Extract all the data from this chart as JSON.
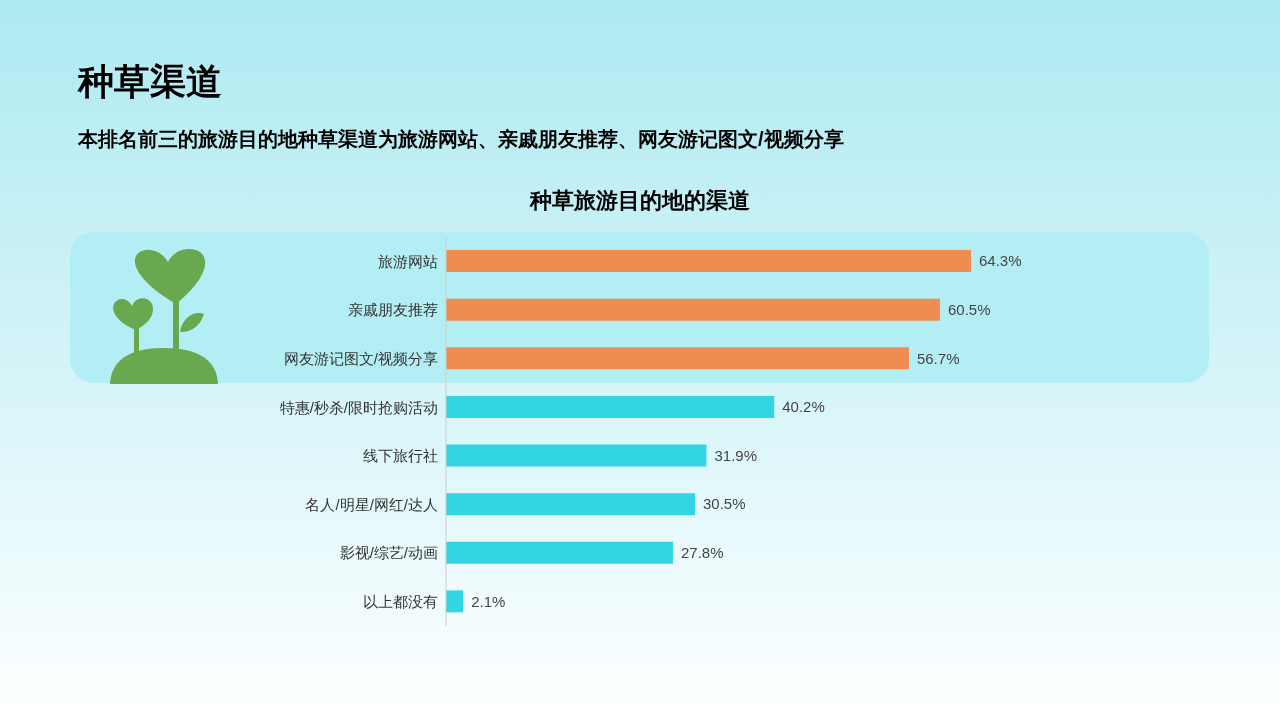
{
  "chart_data": {
    "type": "bar",
    "orientation": "horizontal",
    "title": "种草旅游目的地的渠道",
    "subtitle": "本排名前三的旅游目的地种草渠道为旅游网站、亲戚朋友推荐、网友游记图文/视频分享",
    "annotations": [
      "种草渠道"
    ],
    "categories": [
      "旅游网站",
      "亲戚朋友推荐",
      "网友游记图文/视频分享",
      "特惠/秒杀/限时抢购活动",
      "线下旅行社",
      "名人/明星/网红/达人",
      "影视/综艺/动画",
      "以上都没有"
    ],
    "values": [
      64.3,
      60.5,
      56.7,
      40.2,
      31.9,
      30.5,
      27.8,
      2.1
    ],
    "value_labels": [
      "64.3%",
      "60.5%",
      "56.7%",
      "40.2%",
      "31.9%",
      "30.5%",
      "27.8%",
      "2.1%"
    ],
    "bands": [
      {
        "axis": "y",
        "from": "旅游网站",
        "to": "网友游记图文/视频分享",
        "color": "#b4eef5"
      }
    ],
    "colors": [
      "#f08c50",
      "#f08c50",
      "#f08c50",
      "#33d5e3",
      "#33d5e3",
      "#33d5e3",
      "#33d5e3",
      "#33d5e3"
    ]
  }
}
